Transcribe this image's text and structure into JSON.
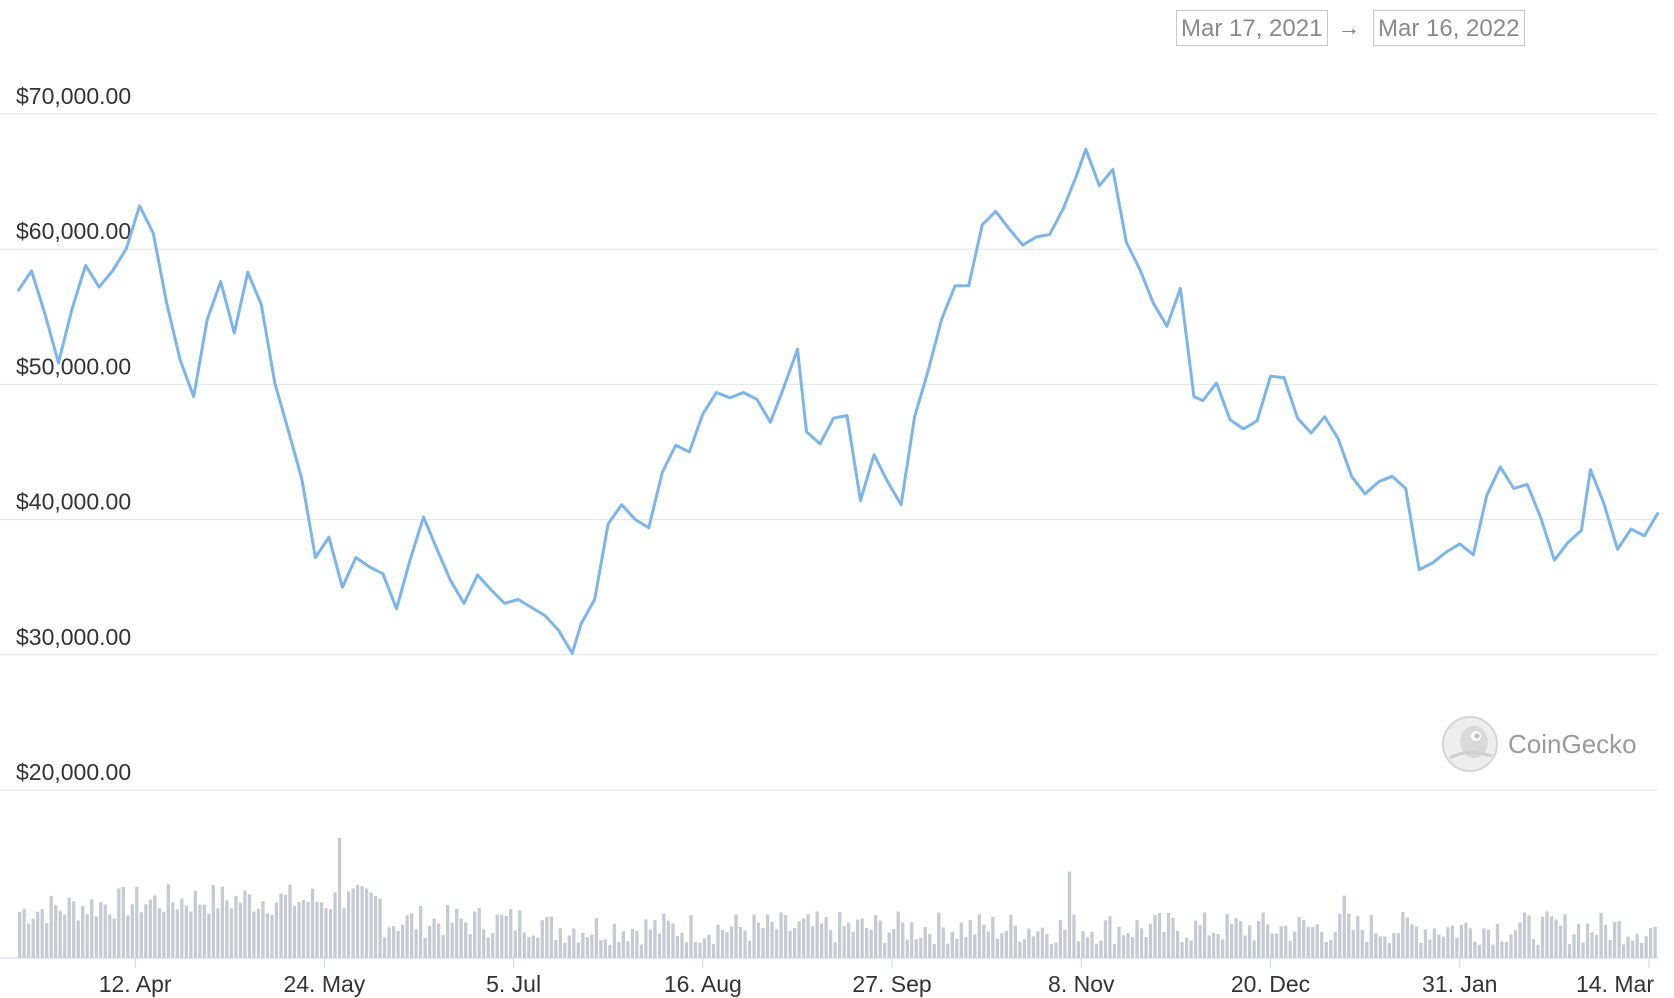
{
  "date_range": {
    "start": "Mar 17, 2021",
    "end": "Mar 16, 2022",
    "arrow": "→"
  },
  "watermark": "CoinGecko",
  "colors": {
    "line": "#7cb5ec",
    "volume": "#c6cbd3",
    "grid": "#e6e6e6",
    "axis_text": "#333333"
  },
  "chart_data": {
    "type": "line",
    "title": "",
    "xlabel": "",
    "ylabel": "",
    "ylim": [
      20000,
      70000
    ],
    "y_ticks": [
      20000,
      30000,
      40000,
      50000,
      60000,
      70000
    ],
    "y_tick_labels": [
      "$20,000.00",
      "$30,000.00",
      "$40,000.00",
      "$50,000.00",
      "$60,000.00",
      "$70,000.00"
    ],
    "x_range": [
      "2021-03-17",
      "2022-03-16"
    ],
    "x_ticks": [
      "2021-04-12",
      "2021-05-24",
      "2021-07-05",
      "2021-08-16",
      "2021-09-27",
      "2021-11-08",
      "2021-12-20",
      "2022-01-31",
      "2022-03-14"
    ],
    "x_tick_labels": [
      "12. Apr",
      "24. May",
      "5. Jul",
      "16. Aug",
      "27. Sep",
      "8. Nov",
      "20. Dec",
      "31. Jan",
      "14. Mar"
    ],
    "grid": true,
    "legend": "none",
    "series": [
      {
        "x": [
          "2021-03-17",
          "2021-03-20",
          "2021-03-23",
          "2021-03-26",
          "2021-03-29",
          "2021-04-01",
          "2021-04-04",
          "2021-04-07",
          "2021-04-10",
          "2021-04-13",
          "2021-04-16",
          "2021-04-19",
          "2021-04-22",
          "2021-04-25",
          "2021-04-28",
          "2021-05-01",
          "2021-05-04",
          "2021-05-07",
          "2021-05-10",
          "2021-05-13",
          "2021-05-16",
          "2021-05-19",
          "2021-05-22",
          "2021-05-25",
          "2021-05-28",
          "2021-05-31",
          "2021-06-03",
          "2021-06-06",
          "2021-06-09",
          "2021-06-12",
          "2021-06-15",
          "2021-06-18",
          "2021-06-21",
          "2021-06-24",
          "2021-06-27",
          "2021-06-30",
          "2021-07-03",
          "2021-07-06",
          "2021-07-09",
          "2021-07-12",
          "2021-07-15",
          "2021-07-18",
          "2021-07-20",
          "2021-07-23",
          "2021-07-26",
          "2021-07-29",
          "2021-08-01",
          "2021-08-04",
          "2021-08-07",
          "2021-08-10",
          "2021-08-13",
          "2021-08-16",
          "2021-08-19",
          "2021-08-22",
          "2021-08-25",
          "2021-08-28",
          "2021-08-31",
          "2021-09-03",
          "2021-09-06",
          "2021-09-08",
          "2021-09-11",
          "2021-09-14",
          "2021-09-17",
          "2021-09-20",
          "2021-09-23",
          "2021-09-26",
          "2021-09-29",
          "2021-10-02",
          "2021-10-05",
          "2021-10-08",
          "2021-10-11",
          "2021-10-14",
          "2021-10-17",
          "2021-10-20",
          "2021-10-23",
          "2021-10-26",
          "2021-10-29",
          "2021-11-01",
          "2021-11-04",
          "2021-11-07",
          "2021-11-09",
          "2021-11-12",
          "2021-11-15",
          "2021-11-18",
          "2021-11-21",
          "2021-11-24",
          "2021-11-27",
          "2021-11-30",
          "2021-12-03",
          "2021-12-05",
          "2021-12-08",
          "2021-12-11",
          "2021-12-14",
          "2021-12-17",
          "2021-12-20",
          "2021-12-23",
          "2021-12-26",
          "2021-12-29",
          "2022-01-01",
          "2022-01-04",
          "2022-01-07",
          "2022-01-10",
          "2022-01-13",
          "2022-01-16",
          "2022-01-19",
          "2022-01-22",
          "2022-01-25",
          "2022-01-28",
          "2022-01-31",
          "2022-02-03",
          "2022-02-06",
          "2022-02-09",
          "2022-02-12",
          "2022-02-15",
          "2022-02-18",
          "2022-02-21",
          "2022-02-24",
          "2022-02-27",
          "2022-03-01",
          "2022-03-04",
          "2022-03-07",
          "2022-03-10",
          "2022-03-13",
          "2022-03-16"
        ],
        "y": [
          56900,
          58400,
          55200,
          51600,
          55600,
          58800,
          57200,
          58400,
          60000,
          63200,
          61200,
          56000,
          51800,
          49100,
          54800,
          57600,
          53800,
          58300,
          55900,
          50100,
          46600,
          43000,
          37200,
          38700,
          35000,
          37200,
          36500,
          36000,
          33400,
          37000,
          40200,
          37800,
          35500,
          33800,
          35900,
          34800,
          33800,
          34100,
          33500,
          32900,
          31800,
          30100,
          32300,
          34100,
          39700,
          41100,
          40000,
          39400,
          43500,
          45500,
          45000,
          47800,
          49400,
          49000,
          49400,
          48900,
          47200,
          49800,
          52600,
          46500,
          45600,
          47500,
          47700,
          41400,
          44800,
          42800,
          41100,
          47600,
          51000,
          54800,
          57300,
          57300,
          61800,
          62800,
          61500,
          60300,
          60900,
          61100,
          63000,
          65500,
          67400,
          64700,
          65900,
          60500,
          58500,
          56000,
          54300,
          57100,
          49100,
          48800,
          50100,
          47400,
          46700,
          47300,
          50600,
          50500,
          47500,
          46400,
          47600,
          46000,
          43200,
          41900,
          42800,
          43200,
          42300,
          36300,
          36800,
          37600,
          38200,
          37400,
          41800,
          43900,
          42300,
          42600,
          40100,
          37000,
          38300,
          39200,
          43700,
          41200,
          37800,
          39300,
          38800,
          40500
        ]
      }
    ]
  }
}
